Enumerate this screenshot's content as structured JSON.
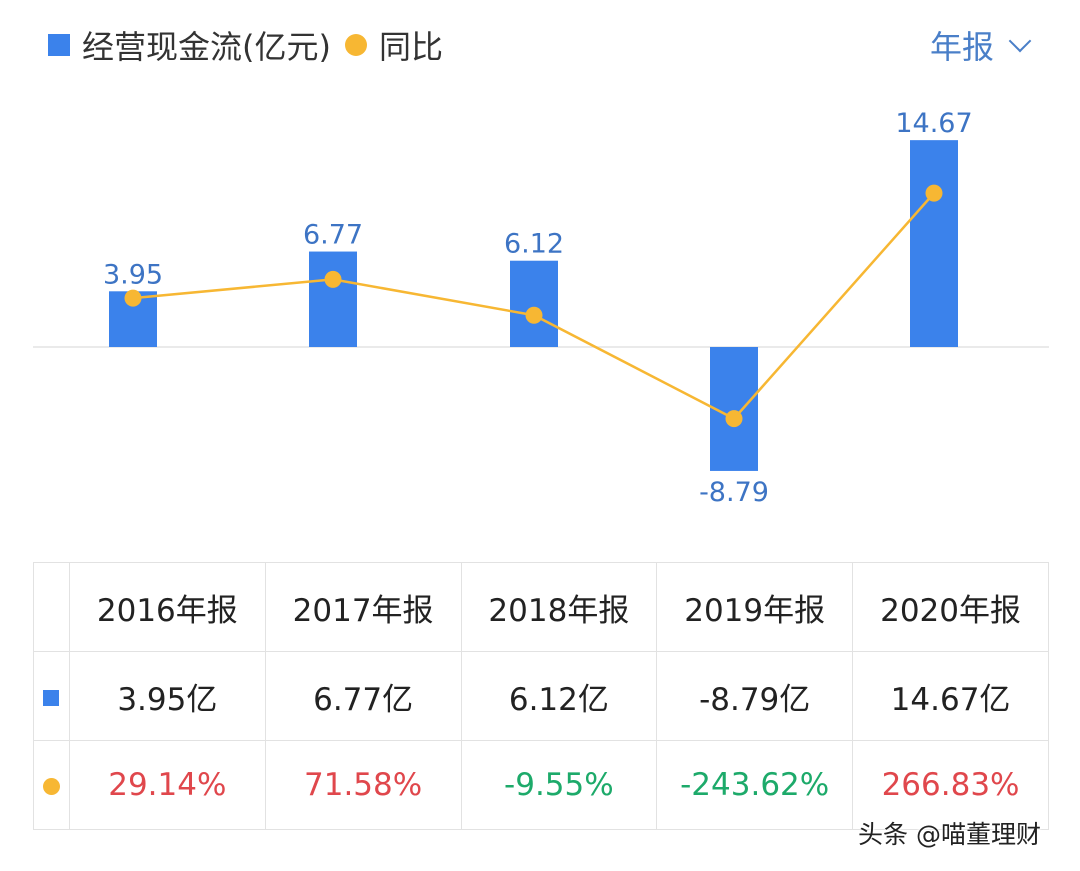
{
  "legend": {
    "bar_label": "经营现金流(亿元)",
    "line_label": "同比"
  },
  "period_selector": {
    "label": "年报"
  },
  "chart_data": {
    "type": "bar+line",
    "categories": [
      "2016年报",
      "2017年报",
      "2018年报",
      "2019年报",
      "2020年报"
    ],
    "series": [
      {
        "name": "经营现金流(亿元)",
        "type": "bar",
        "values": [
          3.95,
          6.77,
          6.12,
          -8.79,
          14.67
        ],
        "color": "#3b82eb"
      },
      {
        "name": "同比",
        "type": "line",
        "values": [
          29.14,
          71.58,
          -9.55,
          -243.62,
          266.83
        ],
        "unit": "%",
        "color": "#f7b733"
      }
    ],
    "data_labels": [
      "3.95",
      "6.77",
      "6.12",
      "-8.79",
      "14.67"
    ],
    "grid": false
  },
  "table": {
    "headers": [
      "2016年报",
      "2017年报",
      "2018年报",
      "2019年报",
      "2020年报"
    ],
    "bar_row": [
      "3.95亿",
      "6.77亿",
      "6.12亿",
      "-8.79亿",
      "14.67亿"
    ],
    "line_row": [
      "29.14%",
      "71.58%",
      "-9.55%",
      "-243.62%",
      "266.83%"
    ],
    "colors": {
      "positive": "#e0474c",
      "negative": "#1daa6a"
    }
  },
  "watermark": "头条 @喵董理财"
}
